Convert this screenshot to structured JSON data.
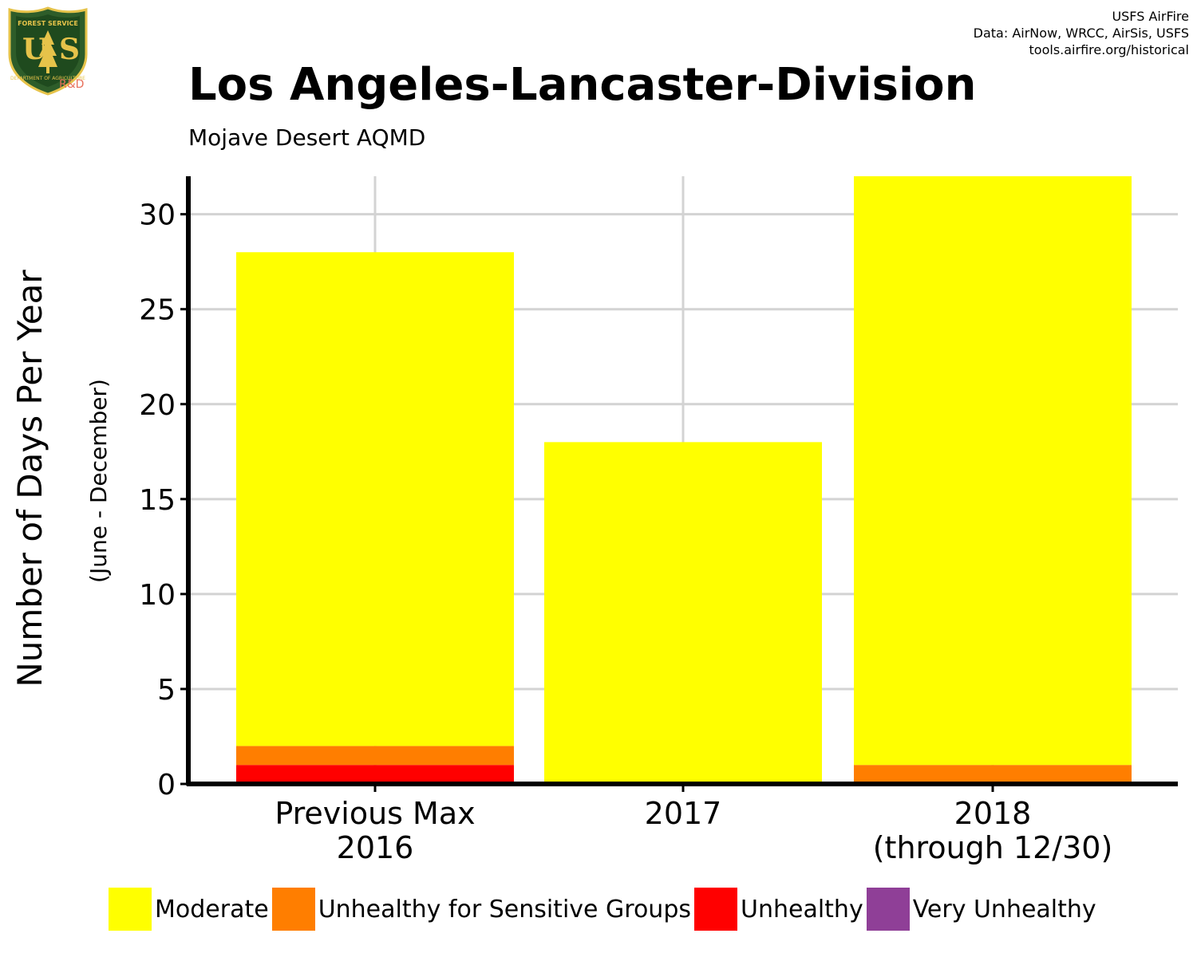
{
  "header": {
    "logo_top_text": "FOREST SERVICE",
    "logo_letters": "US",
    "logo_bottom_text": "DEPARTMENT OF AGRICULTURE",
    "logo_suffix": "R&D",
    "credits": [
      "USFS AirFire",
      "Data: AirNow, WRCC, AirSis, USFS",
      "tools.airfire.org/historical"
    ]
  },
  "chart_data": {
    "type": "bar",
    "stacked": true,
    "title": "Los Angeles-Lancaster-Division",
    "subtitle": "Mojave Desert AQMD",
    "ylabel": "Number of Days Per Year",
    "ylabel_sub": "(June - December)",
    "xlabel": "",
    "ylim": [
      0,
      32
    ],
    "yticks": [
      0,
      5,
      10,
      15,
      20,
      25,
      30
    ],
    "grid": true,
    "legend_position": "bottom",
    "categories": [
      [
        "Previous Max",
        "2016"
      ],
      [
        "2017"
      ],
      [
        "2018",
        "(through 12/30)"
      ]
    ],
    "series": [
      {
        "name": "Moderate",
        "color": "#FFFF00",
        "values": [
          26,
          18,
          31
        ]
      },
      {
        "name": "Unhealthy for Sensitive Groups",
        "color": "#FF7E00",
        "values": [
          1,
          0,
          1
        ]
      },
      {
        "name": "Unhealthy",
        "color": "#FF0000",
        "values": [
          1,
          0,
          0
        ]
      },
      {
        "name": "Very Unhealthy",
        "color": "#8F3F97",
        "values": [
          0,
          0,
          0
        ]
      }
    ],
    "stack_order_bottom_to_top": [
      "Unhealthy",
      "Unhealthy for Sensitive Groups",
      "Moderate"
    ]
  }
}
